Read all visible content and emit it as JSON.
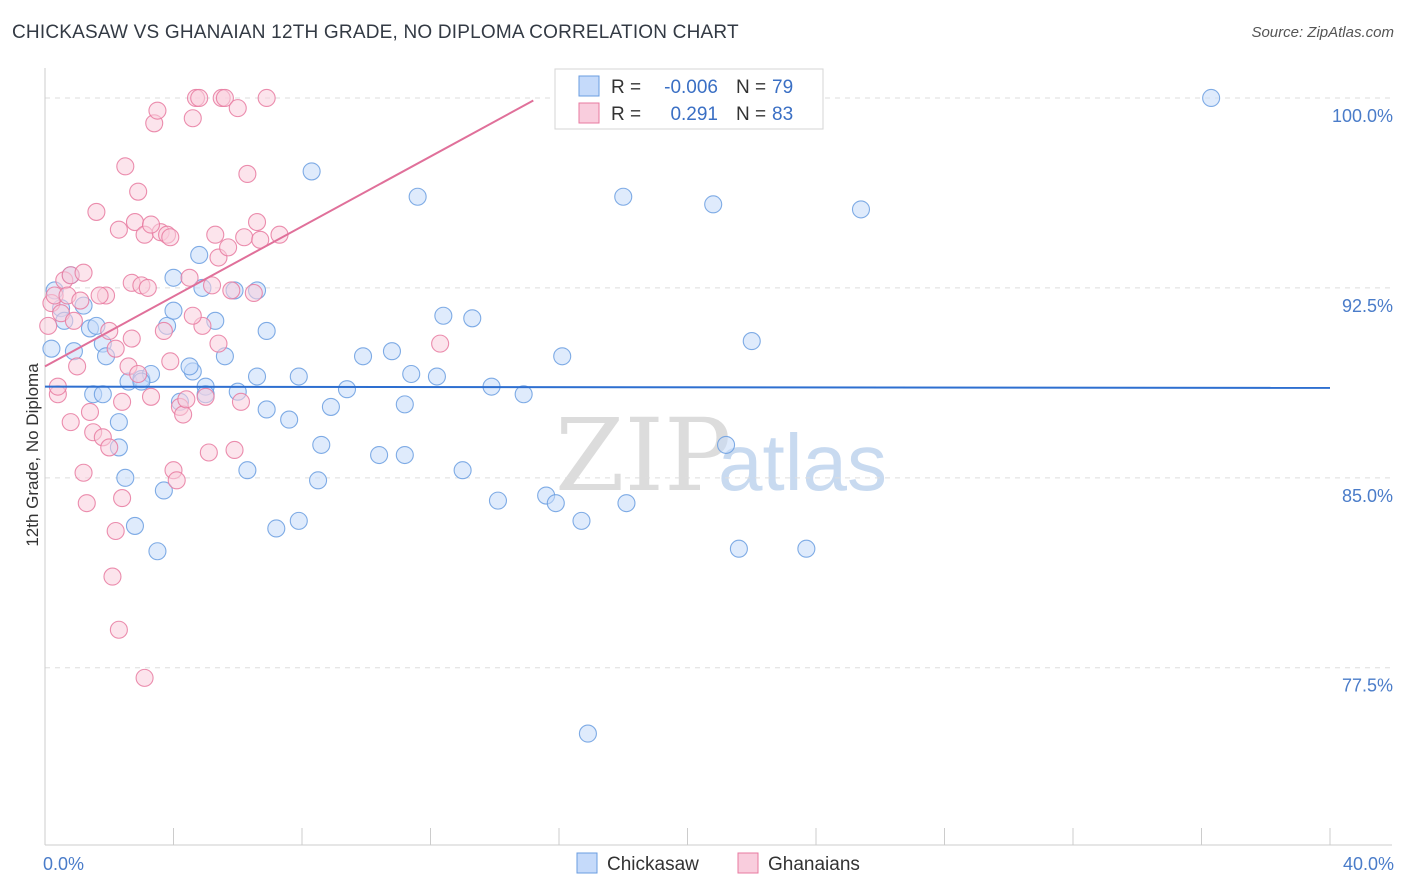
{
  "title": "CHICKASAW VS GHANAIAN 12TH GRADE, NO DIPLOMA CORRELATION CHART",
  "source": "Source: ZipAtlas.com",
  "watermark": {
    "zip": "ZIP",
    "atlas": "atlas"
  },
  "colors": {
    "blue": "#6a9de0",
    "blue_fill": "#c5dafa",
    "pink": "#e87aa0",
    "pink_fill": "#f9cddd",
    "blue_line": "#2e6fd0",
    "pink_line": "#e0709a",
    "tick": "#4a7cc9"
  },
  "legend": {
    "r_label": "R =",
    "n_label": "N =",
    "rows": [
      {
        "series": "Chickasaw",
        "r": "-0.006",
        "n": "79"
      },
      {
        "series": "Ghanaians",
        "r": "0.291",
        "n": "83"
      }
    ]
  },
  "bottom_legend": [
    "Chickasaw",
    "Ghanaians"
  ],
  "chart_data": {
    "type": "scatter",
    "xlabel": "",
    "ylabel": "12th Grade, No Diploma",
    "xlim": [
      0,
      40
    ],
    "ylim": [
      70.5,
      101.5
    ],
    "x_tick_labels": [
      {
        "value": 0,
        "label": "0.0%"
      },
      {
        "value": 40,
        "label": "40.0%"
      }
    ],
    "y_tick_labels": [
      {
        "value": 100.0,
        "label": "100.0%"
      },
      {
        "value": 92.5,
        "label": "92.5%"
      },
      {
        "value": 85.0,
        "label": "85.0%"
      },
      {
        "value": 77.5,
        "label": "77.5%"
      }
    ],
    "grid": "horizontal-dashed",
    "legend_position": "top-center",
    "series": [
      {
        "name": "Chickasaw",
        "trend": {
          "x": [
            0,
            40
          ],
          "y": [
            88.6,
            88.55
          ]
        },
        "points": [
          [
            0.2,
            90.1
          ],
          [
            0.3,
            92.4
          ],
          [
            0.5,
            91.7
          ],
          [
            0.6,
            91.2
          ],
          [
            0.8,
            93.0
          ],
          [
            0.9,
            90.0
          ],
          [
            1.2,
            91.8
          ],
          [
            1.4,
            90.9
          ],
          [
            1.5,
            88.3
          ],
          [
            1.8,
            90.3
          ],
          [
            1.6,
            91.0
          ],
          [
            1.8,
            88.3
          ],
          [
            1.9,
            89.8
          ],
          [
            2.3,
            87.2
          ],
          [
            2.3,
            86.2
          ],
          [
            2.5,
            85.0
          ],
          [
            2.6,
            88.8
          ],
          [
            2.8,
            83.1
          ],
          [
            3.0,
            88.9
          ],
          [
            3.3,
            89.1
          ],
          [
            3.5,
            82.1
          ],
          [
            3.7,
            84.5
          ],
          [
            3.8,
            91.0
          ],
          [
            4.0,
            91.6
          ],
          [
            4.2,
            88.0
          ],
          [
            4.8,
            93.8
          ],
          [
            5.0,
            88.6
          ],
          [
            4.6,
            89.2
          ],
          [
            4.5,
            89.4
          ],
          [
            4.9,
            92.5
          ],
          [
            5.3,
            91.2
          ],
          [
            5.6,
            89.8
          ],
          [
            5.9,
            92.4
          ],
          [
            6.0,
            88.4
          ],
          [
            6.3,
            85.3
          ],
          [
            6.6,
            89.0
          ],
          [
            6.6,
            92.4
          ],
          [
            6.9,
            87.7
          ],
          [
            7.2,
            83.0
          ],
          [
            7.6,
            87.3
          ],
          [
            7.9,
            83.3
          ],
          [
            8.3,
            97.1
          ],
          [
            8.5,
            84.9
          ],
          [
            8.6,
            86.3
          ],
          [
            8.9,
            87.8
          ],
          [
            9.4,
            88.5
          ],
          [
            9.9,
            89.8
          ],
          [
            10.4,
            85.9
          ],
          [
            10.8,
            90.0
          ],
          [
            11.2,
            87.9
          ],
          [
            11.4,
            89.1
          ],
          [
            11.6,
            96.1
          ],
          [
            11.2,
            85.9
          ],
          [
            12.2,
            89.0
          ],
          [
            12.4,
            91.4
          ],
          [
            13.0,
            85.3
          ],
          [
            13.9,
            88.6
          ],
          [
            13.3,
            91.3
          ],
          [
            14.1,
            84.1
          ],
          [
            14.9,
            88.3
          ],
          [
            15.6,
            84.3
          ],
          [
            15.9,
            84.0
          ],
          [
            16.1,
            89.8
          ],
          [
            16.7,
            83.3
          ],
          [
            16.9,
            74.9
          ],
          [
            18.0,
            96.1
          ],
          [
            18.1,
            84.0
          ],
          [
            20.8,
            95.8
          ],
          [
            21.2,
            86.3
          ],
          [
            21.6,
            82.2
          ],
          [
            22.0,
            90.4
          ],
          [
            23.7,
            82.2
          ],
          [
            25.4,
            95.6
          ],
          [
            36.3,
            100.0
          ],
          [
            4.0,
            92.9
          ],
          [
            6.9,
            90.8
          ],
          [
            5.0,
            88.3
          ],
          [
            7.9,
            89.0
          ],
          [
            3.0,
            88.8
          ]
        ]
      },
      {
        "name": "Ghanaians",
        "trend": {
          "x": [
            0,
            15.2
          ],
          "y": [
            89.4,
            99.9
          ]
        },
        "points": [
          [
            0.1,
            91.0
          ],
          [
            0.2,
            91.9
          ],
          [
            0.3,
            92.2
          ],
          [
            0.4,
            88.3
          ],
          [
            0.5,
            91.5
          ],
          [
            0.6,
            92.8
          ],
          [
            0.7,
            92.2
          ],
          [
            0.8,
            93.0
          ],
          [
            0.9,
            91.2
          ],
          [
            1.0,
            89.4
          ],
          [
            1.2,
            85.2
          ],
          [
            1.3,
            84.0
          ],
          [
            1.4,
            87.6
          ],
          [
            1.5,
            86.8
          ],
          [
            1.6,
            95.5
          ],
          [
            1.8,
            86.6
          ],
          [
            1.9,
            92.2
          ],
          [
            2.0,
            90.8
          ],
          [
            2.0,
            86.2
          ],
          [
            2.1,
            81.1
          ],
          [
            2.2,
            82.9
          ],
          [
            2.3,
            79.0
          ],
          [
            2.3,
            94.8
          ],
          [
            2.4,
            88.0
          ],
          [
            2.4,
            84.2
          ],
          [
            2.5,
            97.3
          ],
          [
            2.6,
            89.4
          ],
          [
            2.7,
            92.7
          ],
          [
            2.8,
            95.1
          ],
          [
            2.9,
            96.3
          ],
          [
            2.9,
            89.1
          ],
          [
            3.0,
            92.6
          ],
          [
            3.1,
            94.6
          ],
          [
            3.1,
            77.1
          ],
          [
            3.2,
            92.5
          ],
          [
            3.3,
            88.2
          ],
          [
            3.4,
            99.0
          ],
          [
            3.5,
            99.5
          ],
          [
            3.6,
            94.7
          ],
          [
            3.7,
            90.8
          ],
          [
            3.8,
            94.6
          ],
          [
            3.9,
            89.6
          ],
          [
            4.0,
            85.3
          ],
          [
            4.1,
            84.9
          ],
          [
            4.2,
            87.8
          ],
          [
            4.3,
            87.5
          ],
          [
            4.4,
            88.1
          ],
          [
            4.5,
            92.9
          ],
          [
            4.6,
            99.2
          ],
          [
            4.7,
            100.0
          ],
          [
            4.8,
            100.0
          ],
          [
            4.9,
            91.0
          ],
          [
            5.0,
            88.2
          ],
          [
            5.1,
            86.0
          ],
          [
            5.2,
            92.6
          ],
          [
            5.3,
            94.6
          ],
          [
            5.4,
            90.3
          ],
          [
            5.4,
            93.7
          ],
          [
            5.5,
            100.0
          ],
          [
            5.6,
            100.0
          ],
          [
            5.7,
            94.1
          ],
          [
            5.8,
            92.4
          ],
          [
            6.0,
            99.6
          ],
          [
            6.2,
            94.5
          ],
          [
            6.3,
            97.0
          ],
          [
            6.5,
            92.3
          ],
          [
            6.6,
            95.1
          ],
          [
            6.7,
            94.4
          ],
          [
            6.9,
            100.0
          ],
          [
            7.3,
            94.6
          ],
          [
            0.4,
            88.6
          ],
          [
            0.8,
            87.2
          ],
          [
            1.2,
            93.1
          ],
          [
            1.7,
            92.2
          ],
          [
            2.7,
            90.5
          ],
          [
            3.3,
            95.0
          ],
          [
            4.6,
            91.4
          ],
          [
            5.9,
            86.1
          ],
          [
            12.3,
            90.3
          ],
          [
            3.9,
            94.5
          ],
          [
            1.1,
            92.0
          ],
          [
            2.2,
            90.1
          ],
          [
            6.1,
            88.0
          ]
        ]
      }
    ]
  }
}
